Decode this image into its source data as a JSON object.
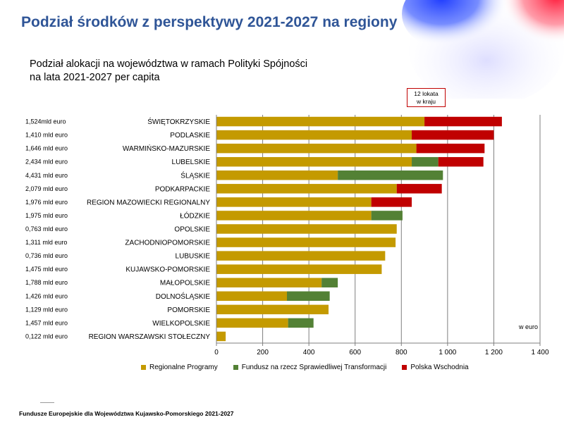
{
  "header": {
    "title": "Podział środków z perspektywy 2021-2027 na regiony"
  },
  "subtitle": {
    "line1": "Podział alokacji na województwa w ramach Polityki Spójności",
    "line2": "na lata 2021-2027 per capita"
  },
  "callout": {
    "line1": "12 lokata",
    "line2": "w kraju"
  },
  "unit_label": "w euro",
  "footer": "Fundusze Europejskie dla Województwa Kujawsko-Pomorskiego 2021-2027",
  "colors": {
    "title": "#2f5597",
    "regionalne": "#c49a00",
    "fundusz": "#538135",
    "wschodnia": "#c00000"
  },
  "chart_data": {
    "type": "bar",
    "orientation": "horizontal",
    "stacked": true,
    "categories": [
      "ŚWIĘTOKRZYSKIE",
      "PODLASKIE",
      "WARMIŃSKO-MAZURSKIE",
      "LUBELSKIE",
      "ŚLĄSKIE",
      "PODKARPACKIE",
      "REGION MAZOWIECKI REGIONALNY",
      "ŁÓDZKIE",
      "OPOLSKIE",
      "ZACHODNIOPOMORSKIE",
      "LUBUSKIE",
      "KUJAWSKO-POMORSKIE",
      "MAŁOPOLSKIE",
      "DOLNOŚLĄSKIE",
      "POMORSKIE",
      "WIELKOPOLSKIE",
      "REGION WARSZAWSKI STOŁECZNY"
    ],
    "totals_labels": [
      "1,524mld euro",
      "1,410 mld euro",
      "1,646 mld euro",
      "2,434 mld euro",
      "4,431 mld euro",
      "2,079 mld euro",
      "1,976 mld euro",
      "1,975 mld euro",
      "0,763 mld euro",
      "1,311 mld euro",
      "0,736 mld euro",
      "1,475 mld euro",
      "1,788 mld euro",
      "1,426 mld euro",
      "1,129 mld euro",
      "1,457 mld euro",
      "0,122 mld euro"
    ],
    "series": [
      {
        "name": "Regionalne Programy",
        "color": "#c49a00",
        "values": [
          900,
          845,
          865,
          845,
          525,
          780,
          670,
          670,
          780,
          775,
          730,
          715,
          455,
          305,
          485,
          310,
          40
        ]
      },
      {
        "name": "Fundusz na rzecz Sprawiedliwej Transformacji",
        "color": "#538135",
        "values": [
          0,
          0,
          0,
          115,
          455,
          0,
          0,
          135,
          0,
          0,
          0,
          0,
          70,
          185,
          0,
          110,
          0
        ]
      },
      {
        "name": "Polska Wschodnia",
        "color": "#c00000",
        "values": [
          335,
          355,
          295,
          195,
          0,
          195,
          175,
          0,
          0,
          0,
          0,
          0,
          0,
          0,
          0,
          0,
          0
        ]
      }
    ],
    "xlim": [
      0,
      1400
    ],
    "xticks": [
      "0",
      "200",
      "400",
      "600",
      "800",
      "1 000",
      "1 200",
      "1 400"
    ],
    "xtick_values": [
      0,
      200,
      400,
      600,
      800,
      1000,
      1200,
      1400
    ],
    "grid": true,
    "legend": "bottom"
  }
}
